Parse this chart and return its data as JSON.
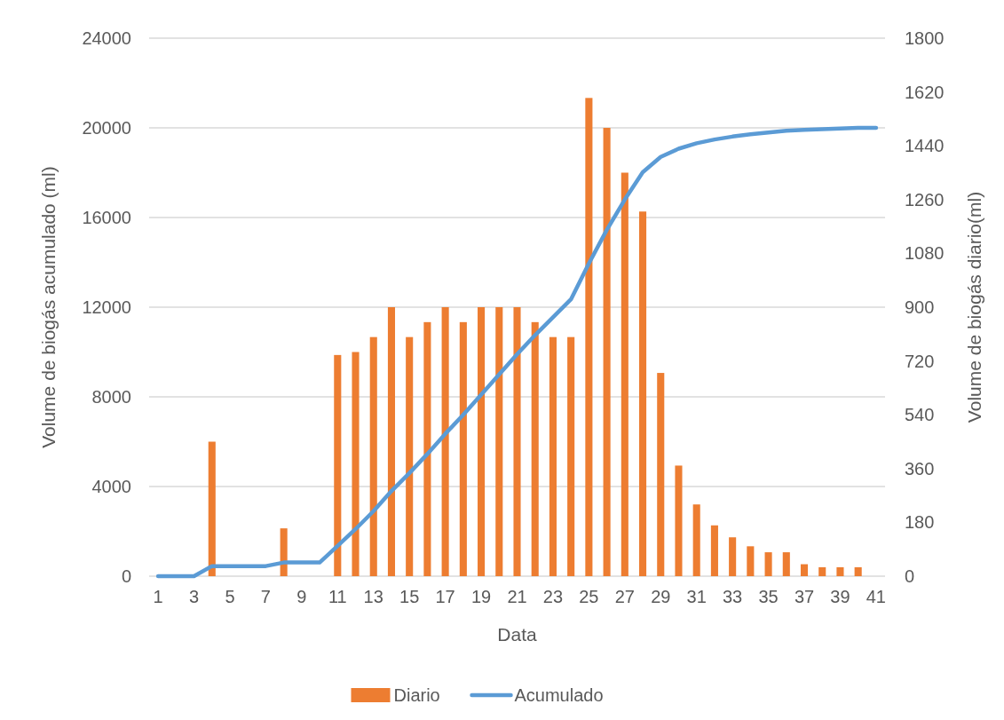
{
  "chart_data": {
    "type": "bar",
    "xlabel": "Data",
    "ylabel": "Volume de biogás acumulado (ml)",
    "y2label": "Volume de biogás diario(ml)",
    "x": [
      1,
      2,
      3,
      4,
      5,
      6,
      7,
      8,
      9,
      10,
      11,
      12,
      13,
      14,
      15,
      16,
      17,
      18,
      19,
      20,
      21,
      22,
      23,
      24,
      25,
      26,
      27,
      28,
      29,
      30,
      31,
      32,
      33,
      34,
      35,
      36,
      37,
      38,
      39,
      40,
      41
    ],
    "xlim": [
      0.5,
      41.5
    ],
    "xticks": [
      1,
      3,
      5,
      7,
      9,
      11,
      13,
      15,
      17,
      19,
      21,
      23,
      25,
      27,
      29,
      31,
      33,
      35,
      37,
      39,
      41
    ],
    "series": [
      {
        "name": "Diario",
        "axis": "y2",
        "color": "#ed7d31",
        "values": [
          0,
          0,
          0,
          450,
          0,
          0,
          0,
          160,
          0,
          0,
          740,
          750,
          800,
          900,
          800,
          850,
          900,
          850,
          900,
          900,
          900,
          850,
          800,
          800,
          1600,
          1500,
          1350,
          1220,
          680,
          370,
          240,
          170,
          130,
          100,
          80,
          80,
          40,
          30,
          30,
          30,
          0
        ]
      },
      {
        "name": "Acumulado",
        "type": "line",
        "axis": "y",
        "color": "#5b9bd5",
        "values": [
          0,
          0,
          0,
          450,
          450,
          450,
          450,
          610,
          610,
          610,
          1350,
          2100,
          2900,
          3800,
          4600,
          5450,
          6350,
          7200,
          8100,
          9000,
          9900,
          10750,
          11550,
          12350,
          13950,
          15450,
          16800,
          18020,
          18700,
          19070,
          19310,
          19480,
          19610,
          19710,
          19790,
          19870,
          19910,
          19940,
          19970,
          20000,
          20000
        ]
      }
    ],
    "ylim": [
      0,
      24000
    ],
    "yticks": [
      0,
      4000,
      8000,
      12000,
      16000,
      20000,
      24000
    ],
    "y2lim": [
      0,
      1800
    ],
    "y2ticks": [
      0,
      180,
      360,
      540,
      720,
      900,
      1080,
      1260,
      1440,
      1620,
      1800
    ],
    "grid": "y",
    "legend": "bottom",
    "marker": "none",
    "line_style": "solid"
  }
}
